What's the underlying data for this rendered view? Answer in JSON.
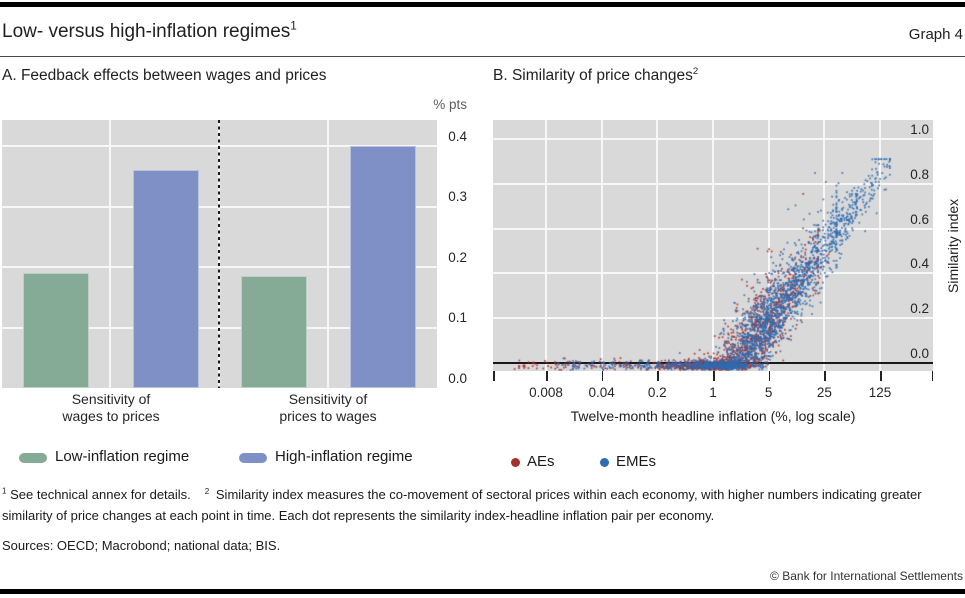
{
  "header": {
    "title": "Low- versus high-inflation regimes",
    "title_sup": "1",
    "graph_label": "Graph 4"
  },
  "panel_a": {
    "title": "A. Feedback effects between wages and prices",
    "unit_label": "% pts",
    "legend": [
      {
        "label": "Low-inflation regime",
        "color": "#85ab96"
      },
      {
        "label": "High-inflation regime",
        "color": "#7f90c7"
      }
    ]
  },
  "panel_b": {
    "title": "B. Similarity of price changes",
    "title_sup": "2",
    "xlabel": "Twelve-month headline inflation (%, log scale)",
    "ylabel": "Similarity index",
    "legend": [
      {
        "label": "AEs",
        "color": "#a62f2b"
      },
      {
        "label": "EMEs",
        "color": "#2f6cb3"
      }
    ]
  },
  "chart_data": [
    {
      "panel": "A",
      "type": "bar",
      "title": "Feedback effects between wages and prices",
      "ylabel": "% pts",
      "ylim": [
        0,
        0.443
      ],
      "y_ticks": [
        0.0,
        0.1,
        0.2,
        0.3,
        0.4
      ],
      "grid": true,
      "categories": [
        {
          "line1": "Sensitivity of",
          "line2": "wages to prices"
        },
        {
          "line1": "Sensitivity of",
          "line2": "prices to wages"
        }
      ],
      "series": [
        {
          "name": "Low-inflation regime",
          "color": "#85ab96",
          "values": [
            0.19,
            0.185
          ]
        },
        {
          "name": "High-inflation regime",
          "color": "#7f90c7",
          "values": [
            0.36,
            0.4
          ]
        }
      ]
    },
    {
      "panel": "B",
      "type": "scatter",
      "title": "Similarity of price changes",
      "xlabel": "Twelve-month headline inflation (%, log scale)",
      "ylabel": "Similarity index",
      "x_scale": "log",
      "x_ticks": [
        0.008,
        0.04,
        0.2,
        1,
        5,
        25,
        125
      ],
      "y_ticks": [
        0.0,
        0.2,
        0.4,
        0.6,
        0.8,
        1.0
      ],
      "xlim": [
        0.0017,
        575
      ],
      "ylim": [
        -0.036,
        1.085
      ],
      "zero_line": 0.0,
      "relationship": "similarity index rises with headline inflation: y ~ -0.15 + 0.47*log10(inflation), floored near 0; upper tail (inflation 25-150%, similarity 0.6-0.9) is EMEs only",
      "generator": {
        "seed": 42,
        "intercept": -0.15,
        "slope_per_decade": 0.47,
        "noise_sd": 0.085,
        "outlier_share": 0.07,
        "outlier_scale": 0.13,
        "floor_mean": -0.012,
        "floor_sd": 0.012,
        "y_max": 0.91
      },
      "series": [
        {
          "name": "AEs",
          "color": "#a62f2b",
          "n_points": 1600,
          "components": [
            {
              "weight": 0.88,
              "dist": "normal",
              "logx_mean": 0.33,
              "logx_sd": 0.46,
              "logx_min": -1.3,
              "logx_max": 1.32
            },
            {
              "weight": 0.08,
              "dist": "uniform",
              "logx_min": -2.5,
              "logx_max": -0.2
            },
            {
              "weight": 0.04,
              "dist": "normal",
              "logx_mean": 1.0,
              "logx_sd": 0.22,
              "logx_min": 0.55,
              "logx_max": 1.45,
              "noise_sd": 0.07
            }
          ]
        },
        {
          "name": "EMEs",
          "color": "#2f6cb3",
          "n_points": 2300,
          "components": [
            {
              "weight": 0.76,
              "dist": "normal",
              "logx_mean": 0.62,
              "logx_sd": 0.46,
              "logx_min": -0.95,
              "logx_max": 1.55
            },
            {
              "weight": 0.08,
              "dist": "uniform",
              "logx_min": -1.95,
              "logx_max": 0.3
            },
            {
              "weight": 0.16,
              "dist": "normal",
              "logx_mean": 1.62,
              "logx_sd": 0.33,
              "logx_min": 0.95,
              "logx_max": 2.22,
              "noise_sd": 0.055
            }
          ]
        }
      ]
    }
  ],
  "footnotes": {
    "marker1": "1",
    "note1": "See technical annex for details.",
    "marker2": "2",
    "note2": "Similarity index measures the co-movement of sectoral prices within each economy, with higher numbers indicating greater similarity of price changes at each point in time. Each dot represents the similarity index-headline inflation pair per economy."
  },
  "footer": {
    "sources": "Sources: OECD; Macrobond; national data; BIS.",
    "copyright": "© Bank for International Settlements"
  }
}
